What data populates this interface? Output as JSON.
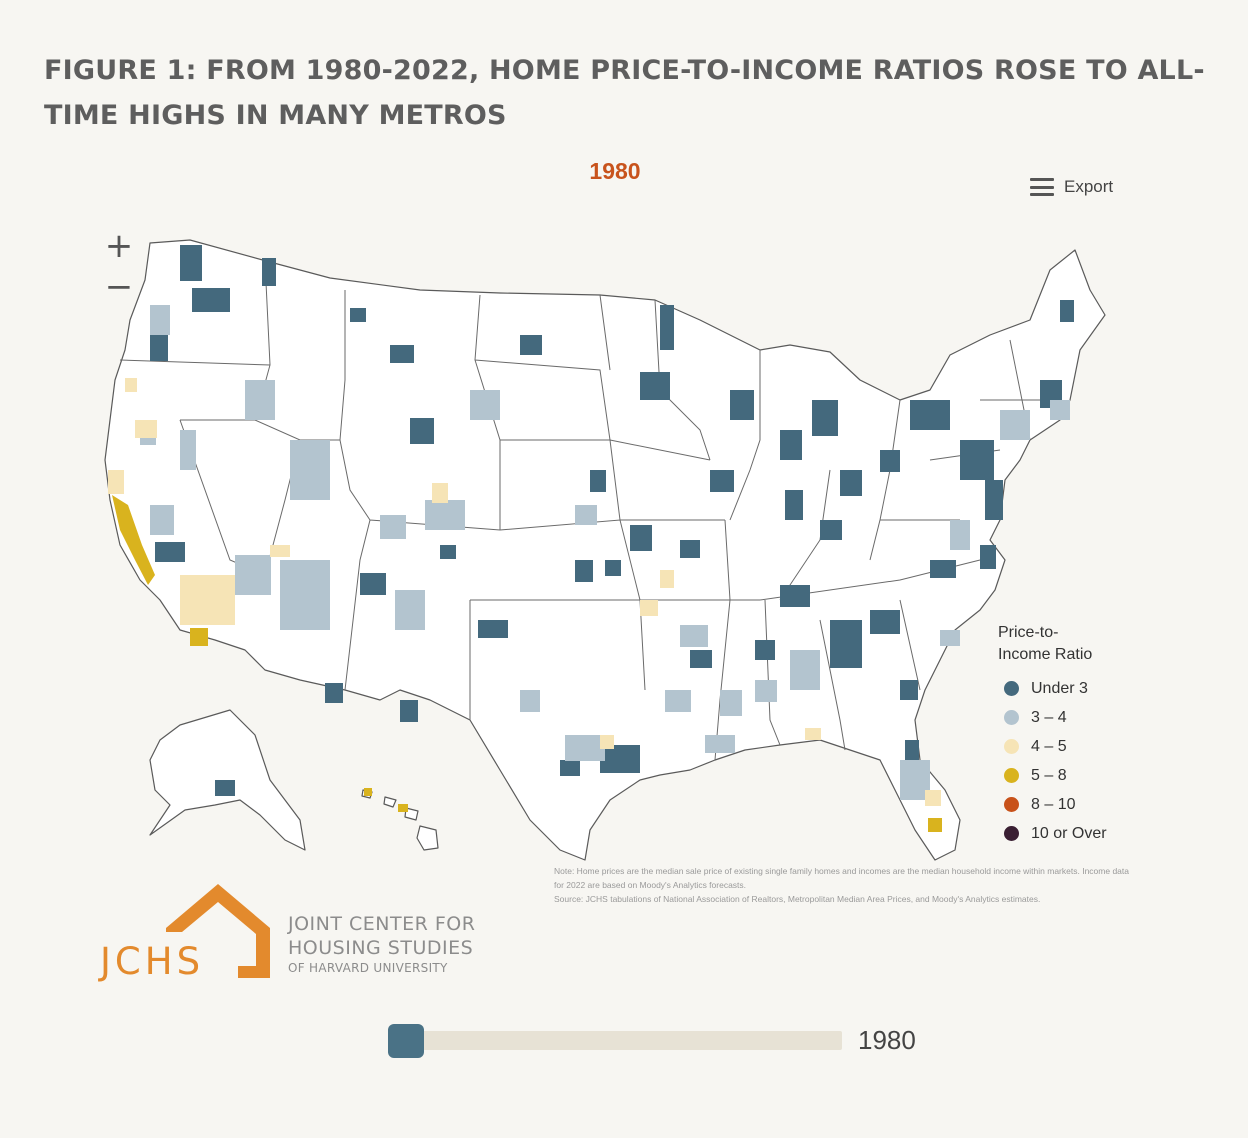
{
  "title": "FIGURE 1: FROM 1980-2022, HOME PRICE-TO-INCOME RATIOS ROSE TO ALL-TIME HIGHS IN MANY METROS",
  "year_label": "1980",
  "export_label": "Export",
  "zoom": {
    "in_label": "+",
    "out_label": "−"
  },
  "legend": {
    "title_line1": "Price-to-",
    "title_line2": "Income Ratio",
    "items": [
      {
        "label": "Under 3",
        "color": "#44697d"
      },
      {
        "label": "3 – 4",
        "color": "#b3c4cf"
      },
      {
        "label": "4 – 5",
        "color": "#f6e4b6"
      },
      {
        "label": "5 – 8",
        "color": "#d9b31e"
      },
      {
        "label": "8 – 10",
        "color": "#c8521a"
      },
      {
        "label": "10 or Over",
        "color": "#3a1f33"
      }
    ]
  },
  "notes": {
    "note": "Note: Home prices are the median sale price of existing single family homes and incomes are the median household income within markets. Income data for 2022 are based on Moody's Analytics forecasts.",
    "source": "Source: JCHS tabulations of National Association of Realtors, Metropolitan Median Area Prices, and Moody's Analytics estimates."
  },
  "logo": {
    "abbr": "JCHS",
    "line1": "JOINT CENTER FOR",
    "line2": "HOUSING STUDIES",
    "line3": "OF HARVARD UNIVERSITY",
    "color": "#e38a2d"
  },
  "slider": {
    "value_label": "1980",
    "position": 0.0
  },
  "map_colors": {
    "background": "#ffffff",
    "border": "#5a5a5a",
    "under3": "#44697d",
    "r3_4": "#b3c4cf",
    "r4_5": "#f6e4b6",
    "r5_8": "#d9b31e"
  }
}
